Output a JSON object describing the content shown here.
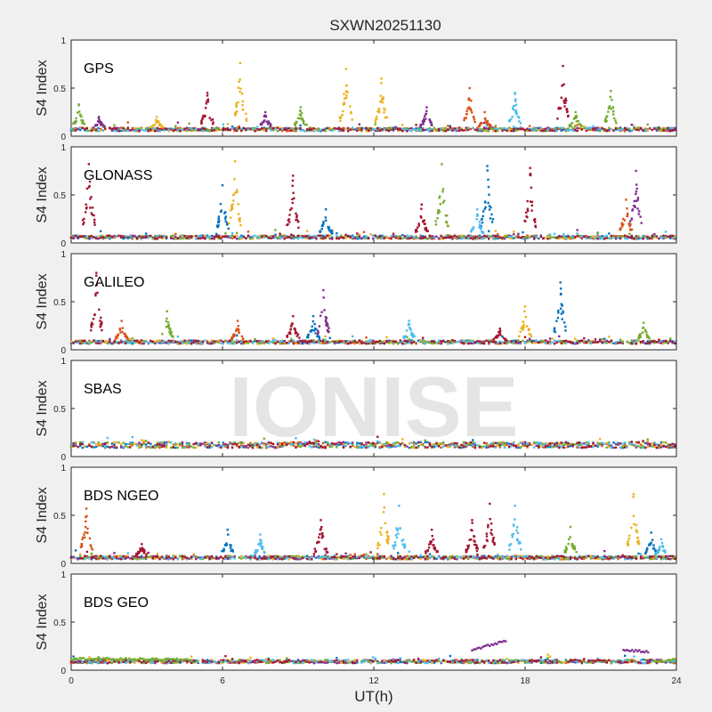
{
  "figure": {
    "title": "SXWN20251130",
    "xlabel": "UT(h)",
    "watermark": "IONISE"
  },
  "colors": [
    "#0072BD",
    "#D95319",
    "#EDB120",
    "#7E2F8E",
    "#77AC30",
    "#4DBEEE",
    "#A2142F"
  ],
  "chart_data": [
    {
      "type": "scatter",
      "label": "GPS",
      "ylabel": "S4 Index",
      "xlim": [
        0,
        24
      ],
      "ylim": [
        0,
        1
      ],
      "xticks": [
        0,
        6,
        12,
        18,
        24
      ],
      "yticks": [
        0,
        0.5,
        1
      ],
      "baseline": 0.07,
      "spikes": [
        [
          0.3,
          0.33,
          4
        ],
        [
          1.1,
          0.2,
          3
        ],
        [
          3.4,
          0.2,
          2
        ],
        [
          5.4,
          0.45,
          6
        ],
        [
          6.7,
          0.76,
          2
        ],
        [
          7.7,
          0.25,
          3
        ],
        [
          9.1,
          0.3,
          4
        ],
        [
          10.9,
          0.7,
          2
        ],
        [
          12.3,
          0.6,
          2
        ],
        [
          14.1,
          0.3,
          3
        ],
        [
          15.8,
          0.5,
          1
        ],
        [
          16.4,
          0.25,
          1
        ],
        [
          17.6,
          0.45,
          5
        ],
        [
          19.5,
          0.73,
          6
        ],
        [
          20.0,
          0.25,
          4
        ],
        [
          21.4,
          0.47,
          4
        ]
      ]
    },
    {
      "type": "scatter",
      "label": "GLONASS",
      "ylabel": "S4 Index",
      "xlim": [
        0,
        24
      ],
      "ylim": [
        0,
        1
      ],
      "xticks": [
        0,
        6,
        12,
        18,
        24
      ],
      "yticks": [
        0,
        0.5,
        1
      ],
      "baseline": 0.06,
      "spikes": [
        [
          0.7,
          0.82,
          6
        ],
        [
          6.0,
          0.6,
          0
        ],
        [
          6.5,
          0.85,
          2
        ],
        [
          8.8,
          0.7,
          6
        ],
        [
          10.1,
          0.35,
          0
        ],
        [
          13.9,
          0.4,
          6
        ],
        [
          14.7,
          0.82,
          4
        ],
        [
          16.5,
          0.8,
          0
        ],
        [
          16.1,
          0.35,
          5
        ],
        [
          18.2,
          0.78,
          6
        ],
        [
          22.4,
          0.75,
          3
        ],
        [
          22.0,
          0.45,
          1
        ]
      ]
    },
    {
      "type": "scatter",
      "label": "GALILEO",
      "ylabel": "S4 Index",
      "xlim": [
        0,
        24
      ],
      "ylim": [
        0,
        1
      ],
      "xticks": [
        0,
        6,
        12,
        18,
        24
      ],
      "yticks": [
        0,
        0.5,
        1
      ],
      "baseline": 0.08,
      "spikes": [
        [
          1.0,
          0.8,
          6
        ],
        [
          2.0,
          0.3,
          1
        ],
        [
          3.8,
          0.4,
          4
        ],
        [
          6.6,
          0.3,
          1
        ],
        [
          8.8,
          0.35,
          6
        ],
        [
          10.0,
          0.62,
          3
        ],
        [
          9.6,
          0.35,
          0
        ],
        [
          13.4,
          0.3,
          5
        ],
        [
          18.0,
          0.45,
          2
        ],
        [
          19.4,
          0.7,
          0
        ],
        [
          17.0,
          0.22,
          6
        ],
        [
          22.7,
          0.28,
          4
        ]
      ]
    },
    {
      "type": "scatter",
      "label": "SBAS",
      "ylabel": "S4 Index",
      "xlim": [
        0,
        24
      ],
      "ylim": [
        0,
        1
      ],
      "xticks": [
        0,
        6,
        12,
        18,
        24
      ],
      "yticks": [
        0,
        0.5,
        1
      ],
      "baseline": 0.12,
      "spikes": []
    },
    {
      "type": "scatter",
      "label": "BDS NGEO",
      "ylabel": "S4 Index",
      "xlim": [
        0,
        24
      ],
      "ylim": [
        0,
        1
      ],
      "xticks": [
        0,
        6,
        12,
        18,
        24
      ],
      "yticks": [
        0,
        0.5,
        1
      ],
      "baseline": 0.06,
      "spikes": [
        [
          0.6,
          0.57,
          1
        ],
        [
          2.8,
          0.2,
          6
        ],
        [
          6.2,
          0.35,
          0
        ],
        [
          7.5,
          0.3,
          5
        ],
        [
          9.9,
          0.45,
          6
        ],
        [
          12.4,
          0.72,
          2
        ],
        [
          13.0,
          0.6,
          5
        ],
        [
          14.3,
          0.35,
          6
        ],
        [
          15.9,
          0.45,
          6
        ],
        [
          16.6,
          0.62,
          6
        ],
        [
          17.6,
          0.6,
          5
        ],
        [
          19.8,
          0.38,
          4
        ],
        [
          22.3,
          0.72,
          2
        ],
        [
          23.0,
          0.32,
          0
        ],
        [
          23.4,
          0.25,
          5
        ]
      ]
    },
    {
      "type": "scatter",
      "label": "BDS GEO",
      "ylabel": "S4 Index",
      "xlim": [
        0,
        24
      ],
      "ylim": [
        0,
        1
      ],
      "xticks": [
        0,
        6,
        12,
        18,
        24
      ],
      "yticks": [
        0,
        0.5,
        1
      ],
      "baseline": 0.09,
      "spikes": [],
      "segments": [
        {
          "x": [
            0,
            4.8
          ],
          "y": [
            0.12,
            0.11
          ],
          "color": 4
        },
        {
          "x": [
            15.9,
            17.3
          ],
          "y": [
            0.21,
            0.31
          ],
          "color": 3
        },
        {
          "x": [
            21.9,
            22.9
          ],
          "y": [
            0.21,
            0.19
          ],
          "color": 3
        },
        {
          "x": [
            23.1,
            24
          ],
          "y": [
            0.09,
            0.11
          ],
          "color": 4
        }
      ]
    }
  ]
}
